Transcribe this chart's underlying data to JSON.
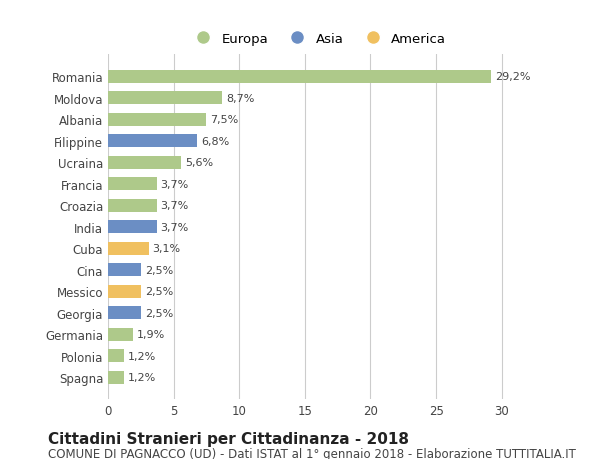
{
  "categories": [
    "Spagna",
    "Polonia",
    "Germania",
    "Georgia",
    "Messico",
    "Cina",
    "Cuba",
    "India",
    "Croazia",
    "Francia",
    "Ucraina",
    "Filippine",
    "Albania",
    "Moldova",
    "Romania"
  ],
  "values": [
    1.2,
    1.2,
    1.9,
    2.5,
    2.5,
    2.5,
    3.1,
    3.7,
    3.7,
    3.7,
    5.6,
    6.8,
    7.5,
    8.7,
    29.2
  ],
  "labels": [
    "1,2%",
    "1,2%",
    "1,9%",
    "2,5%",
    "2,5%",
    "2,5%",
    "3,1%",
    "3,7%",
    "3,7%",
    "3,7%",
    "5,6%",
    "6,8%",
    "7,5%",
    "8,7%",
    "29,2%"
  ],
  "colors": [
    "#aec98a",
    "#aec98a",
    "#aec98a",
    "#6b8ec4",
    "#f0c060",
    "#6b8ec4",
    "#f0c060",
    "#6b8ec4",
    "#aec98a",
    "#aec98a",
    "#aec98a",
    "#6b8ec4",
    "#aec98a",
    "#aec98a",
    "#aec98a"
  ],
  "legend_labels": [
    "Europa",
    "Asia",
    "America"
  ],
  "legend_colors": [
    "#aec98a",
    "#6b8ec4",
    "#f0c060"
  ],
  "title": "Cittadini Stranieri per Cittadinanza - 2018",
  "subtitle": "COMUNE DI PAGNACCO (UD) - Dati ISTAT al 1° gennaio 2018 - Elaborazione TUTTITALIA.IT",
  "xlim": [
    0,
    32
  ],
  "xticks": [
    0,
    5,
    10,
    15,
    20,
    25,
    30
  ],
  "bg_color": "#ffffff",
  "grid_color": "#cccccc",
  "bar_height": 0.6,
  "title_fontsize": 11,
  "subtitle_fontsize": 8.5,
  "label_fontsize": 8,
  "tick_fontsize": 8.5
}
